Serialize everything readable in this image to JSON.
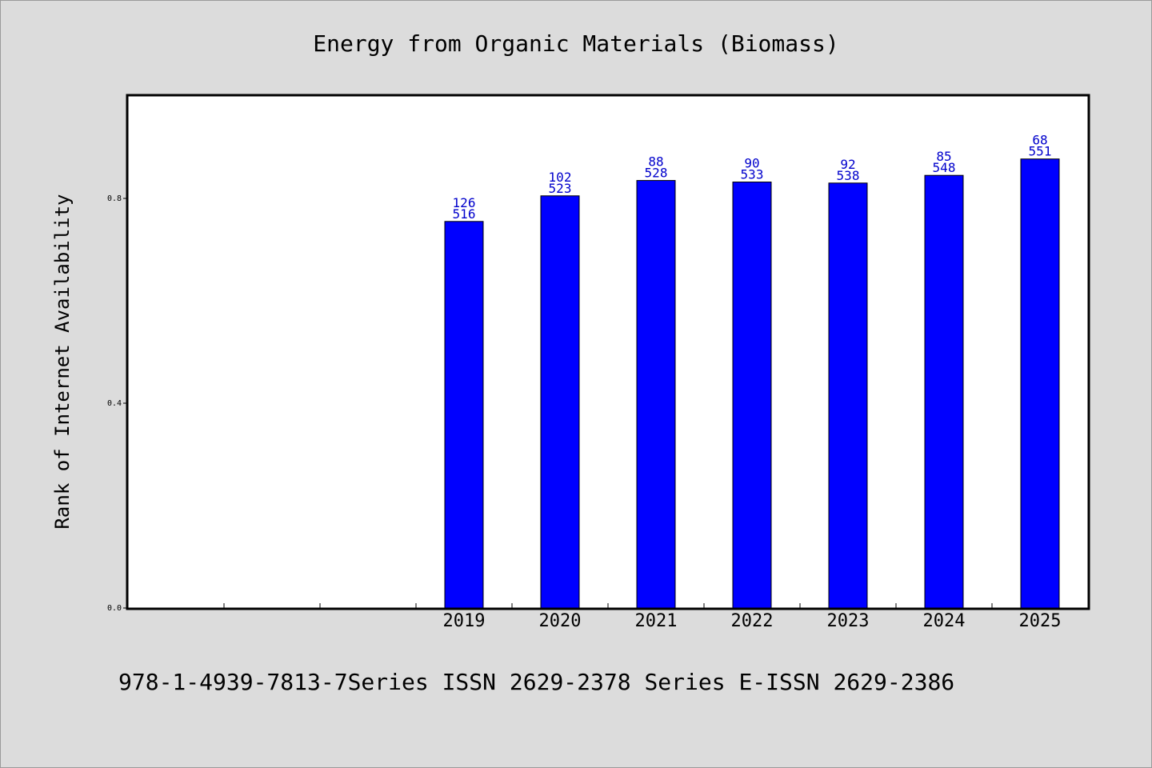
{
  "chart_data": {
    "type": "bar",
    "title": "Energy from Organic Materials (Biomass)",
    "ylabel": "Rank of Internet Availability",
    "xlabel": "",
    "ylim": [
      0,
      1.0
    ],
    "yticks": [
      "0.0",
      "0.4",
      "0.8"
    ],
    "yticks_values": [
      0,
      0.4,
      0.8
    ],
    "categories": [
      "2019",
      "2020",
      "2021",
      "2022",
      "2023",
      "2024",
      "2025"
    ],
    "empty_slots_before": 3,
    "values": [
      0.755,
      0.805,
      0.835,
      0.832,
      0.83,
      0.845,
      0.877
    ],
    "data_labels": [
      {
        "top": "126",
        "bottom": "516"
      },
      {
        "top": "102",
        "bottom": "523"
      },
      {
        "top": "88",
        "bottom": "528"
      },
      {
        "top": "90",
        "bottom": "533"
      },
      {
        "top": "92",
        "bottom": "538"
      },
      {
        "top": "85",
        "bottom": "548"
      },
      {
        "top": "68",
        "bottom": "551"
      }
    ],
    "bar_color": "#0000ff",
    "label_color": "#0000cc",
    "grid": false
  },
  "footer": "978-1-4939-7813-7Series ISSN 2629-2378 Series E-ISSN 2629-2386"
}
